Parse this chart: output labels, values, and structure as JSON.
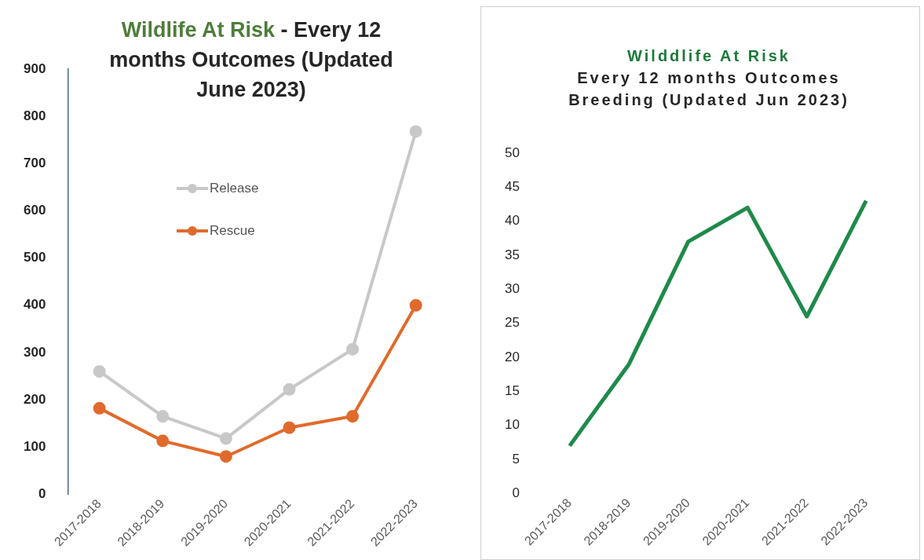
{
  "chart_data": [
    {
      "type": "line",
      "title": "Wildlife At Risk",
      "subtitle": "- Every 12 months Outcomes (Updated June 2023)",
      "categories": [
        "2017-2018",
        "2018-2019",
        "2019-2020",
        "2020-2021",
        "2021-2022",
        "2022-2023"
      ],
      "series": [
        {
          "name": "Release",
          "color": "#c8c8c8",
          "values": [
            260,
            165,
            118,
            222,
            307,
            768
          ]
        },
        {
          "name": "Rescue",
          "color": "#e06a2c",
          "values": [
            182,
            113,
            80,
            141,
            165,
            400
          ]
        }
      ],
      "ylim": [
        0,
        900
      ],
      "yticks": [
        0,
        100,
        200,
        300,
        400,
        500,
        600,
        700,
        800,
        900
      ],
      "grid": false,
      "legend": "top",
      "marker": "circle"
    },
    {
      "type": "line",
      "title": "Wilddlife At Risk",
      "subtitle": "Every 12 months Outcomes Breeding (Updated Jun 2023)",
      "categories": [
        "2017-2018",
        "2018-2019",
        "2019-2020",
        "2020-2021",
        "2021-2022",
        "2022-2023"
      ],
      "series": [
        {
          "color": "#1e8a4a",
          "values": [
            7,
            19,
            37,
            42,
            26,
            43
          ]
        }
      ],
      "ylim": [
        0,
        50
      ],
      "yticks": [
        0,
        5,
        10,
        15,
        20,
        25,
        30,
        35,
        40,
        45,
        50
      ],
      "grid": false,
      "legend": false,
      "marker": "none"
    }
  ]
}
